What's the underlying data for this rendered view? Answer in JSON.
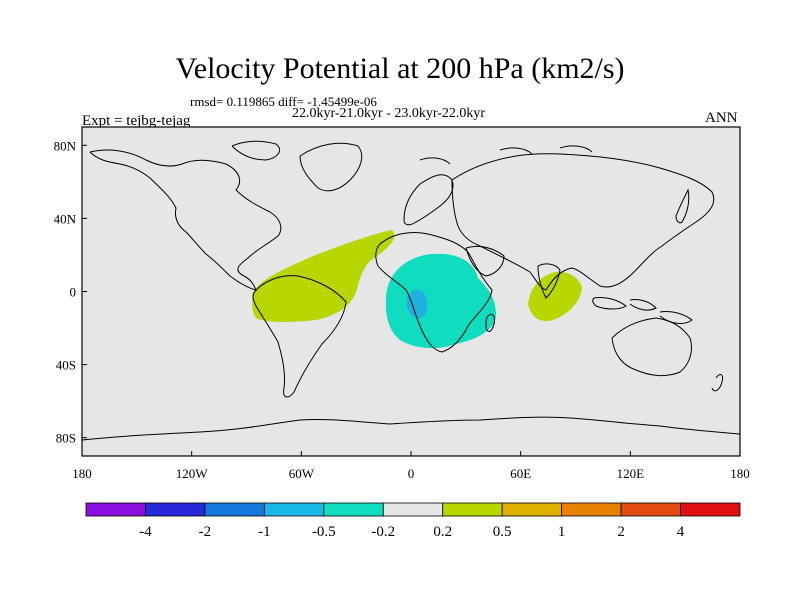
{
  "title": "Velocity Potential at 200 hPa (km2/s)",
  "stats": "rmsd= 0.119865 diff= -1.45499e-06",
  "period": "22.0kyr-21.0kyr - 23.0kyr-22.0kyr",
  "experiment": "Expt = tejbg-tejag",
  "season": "ANN",
  "colors": {
    "background": "#e6e6e6",
    "positive_small": "#b8d600",
    "negative_small": "#10dcc0",
    "negative_mid": "#20b0e0"
  },
  "chart_data": {
    "type": "heatmap",
    "x_axis": {
      "range": [
        -180,
        180
      ],
      "ticks": [
        "180",
        "120W",
        "60W",
        "0",
        "60E",
        "120E",
        "180"
      ]
    },
    "y_axis": {
      "range": [
        -90,
        90
      ],
      "ticks": [
        "80N",
        "40N",
        "0",
        "40S",
        "80S"
      ]
    },
    "colorbar": {
      "labels": [
        "-4",
        "-2",
        "-1",
        "-0.5",
        "-0.2",
        "0.2",
        "0.5",
        "1",
        "2",
        "4"
      ],
      "colors": [
        "#8a10e0",
        "#2828d8",
        "#1478dc",
        "#1ab8e8",
        "#10dcc0",
        "#e6e6e6",
        "#b8d600",
        "#e0b000",
        "#e68200",
        "#e24a10",
        "#e01010"
      ]
    },
    "regions": [
      {
        "name": "tropical-atlantic-south-america",
        "sign": "positive",
        "level": "0.2-0.5"
      },
      {
        "name": "africa",
        "sign": "negative",
        "level": "-0.5 - -0.2"
      },
      {
        "name": "central-africa",
        "sign": "negative",
        "level": "-1 - -0.5"
      },
      {
        "name": "indian-ocean",
        "sign": "positive",
        "level": "0.2-0.5"
      }
    ]
  }
}
